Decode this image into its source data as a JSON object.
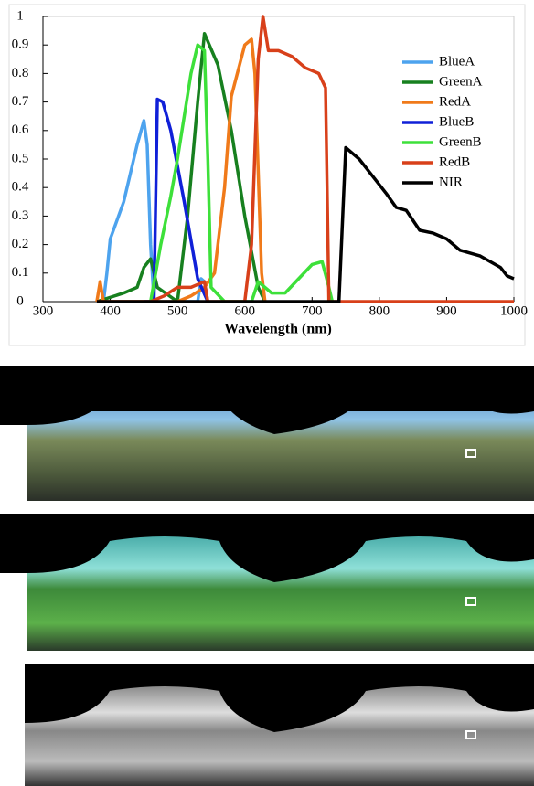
{
  "chart_data": {
    "type": "line",
    "xlabel": "Wavelength (nm)",
    "xlim": [
      300,
      1000
    ],
    "xticks": [
      300,
      400,
      500,
      600,
      700,
      800,
      900,
      1000
    ],
    "ylim": [
      0,
      1
    ],
    "yticks": [
      0,
      0.1,
      0.2,
      0.3,
      0.4,
      0.5,
      0.6,
      0.7,
      0.8,
      0.9,
      1
    ],
    "legend": "right",
    "series": [
      {
        "name": "BlueA",
        "color": "#4da3ee",
        "x": [
          380,
          390,
          395,
          400,
          420,
          440,
          450,
          455,
          460,
          465,
          530,
          535,
          540,
          545
        ],
        "values": [
          0,
          0,
          0.1,
          0.22,
          0.35,
          0.55,
          0.635,
          0.55,
          0.2,
          0,
          0,
          0.08,
          0.07,
          0
        ]
      },
      {
        "name": "GreenA",
        "color": "#17801f",
        "x": [
          380,
          420,
          440,
          450,
          460,
          470,
          500,
          515,
          530,
          540,
          560,
          580,
          600,
          620,
          630
        ],
        "values": [
          0,
          0.03,
          0.05,
          0.12,
          0.15,
          0.05,
          0,
          0.3,
          0.7,
          0.94,
          0.83,
          0.6,
          0.3,
          0.05,
          0
        ]
      },
      {
        "name": "RedA",
        "color": "#f07a1a",
        "x": [
          380,
          385,
          390,
          500,
          520,
          540,
          555,
          570,
          580,
          600,
          610,
          615,
          625,
          630
        ],
        "values": [
          0,
          0.07,
          0,
          0,
          0.02,
          0.05,
          0.1,
          0.4,
          0.72,
          0.9,
          0.92,
          0.8,
          0.1,
          0
        ]
      },
      {
        "name": "BlueB",
        "color": "#1020d8",
        "x": [
          450,
          465,
          470,
          478,
          490,
          510,
          530,
          545
        ],
        "values": [
          0,
          0,
          0.71,
          0.7,
          0.6,
          0.35,
          0.08,
          0
        ]
      },
      {
        "name": "GreenB",
        "color": "#3de03a",
        "x": [
          460,
          475,
          490,
          500,
          520,
          530,
          540,
          545,
          550,
          570,
          610,
          620,
          640,
          660,
          680,
          700,
          715,
          725,
          730
        ],
        "values": [
          0,
          0.2,
          0.37,
          0.5,
          0.8,
          0.9,
          0.88,
          0.5,
          0.05,
          0,
          0,
          0.07,
          0.03,
          0.03,
          0.08,
          0.13,
          0.14,
          0.05,
          0
        ]
      },
      {
        "name": "RedB",
        "color": "#d8401a",
        "x": [
          380,
          460,
          480,
          500,
          520,
          540,
          545,
          600,
          610,
          620,
          627,
          635,
          650,
          670,
          690,
          710,
          720,
          725,
          1000
        ],
        "values": [
          0,
          0,
          0.02,
          0.05,
          0.05,
          0.07,
          0,
          0,
          0.2,
          0.85,
          1,
          0.88,
          0.88,
          0.86,
          0.82,
          0.8,
          0.75,
          0,
          0
        ]
      },
      {
        "name": "NIR",
        "color": "#000000",
        "x": [
          380,
          740,
          750,
          770,
          790,
          810,
          825,
          840,
          860,
          880,
          900,
          920,
          950,
          980,
          990,
          1000
        ],
        "values": [
          0,
          0,
          0.54,
          0.5,
          0.44,
          0.38,
          0.33,
          0.32,
          0.25,
          0.24,
          0.22,
          0.18,
          0.16,
          0.12,
          0.09,
          0.08
        ]
      }
    ]
  }
}
